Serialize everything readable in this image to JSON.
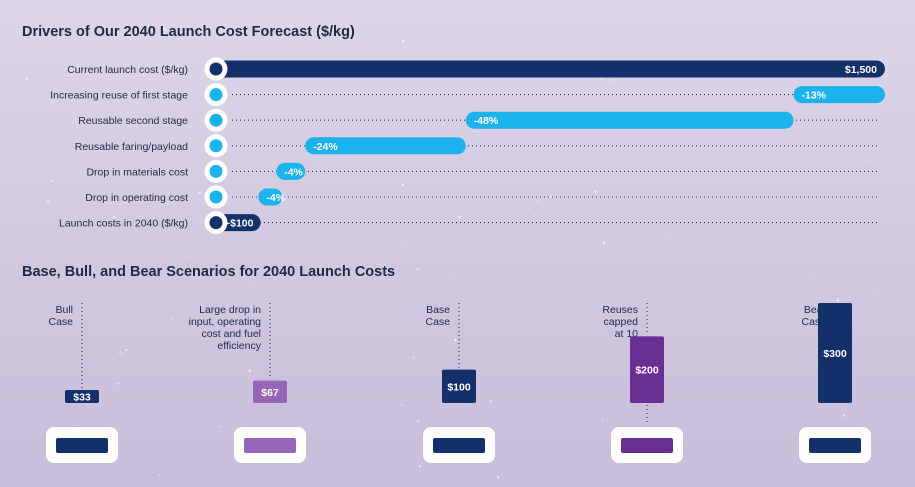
{
  "chart_data": [
    {
      "type": "bar",
      "subtype": "waterfall",
      "title": "Drivers of Our 2040 Launch Cost Forecast ($/kg)",
      "categories": [
        "Current launch cost ($/kg)",
        "Increasing reuse of first stage",
        "Reusable second stage",
        "Reusable faring/payload",
        "Drop in materials cost",
        "Drop in operating cost",
        "Launch costs in 2040 ($/kg)"
      ],
      "values": [
        1500,
        -13,
        -48,
        -24,
        -4,
        -4,
        100
      ],
      "labels": [
        "$1,500",
        "-13%",
        "-48%",
        "-24%",
        "-4%",
        "-4%",
        "~$100"
      ],
      "kinds": [
        "total",
        "change",
        "change",
        "change",
        "change",
        "change",
        "total"
      ],
      "series_colors": {
        "total": "#14306a",
        "change": "#1cb2ec"
      },
      "xlim": [
        0,
        1500
      ],
      "bar_ranges": [
        [
          0,
          1500
        ],
        [
          1295,
          1500
        ],
        [
          560,
          1295
        ],
        [
          200,
          560
        ],
        [
          135,
          200
        ],
        [
          95,
          135
        ],
        [
          0,
          100
        ]
      ]
    },
    {
      "type": "bar",
      "title": "Base, Bull, and Bear Scenarios for 2040 Launch Costs",
      "categories": [
        "Bull Case",
        "Large drop in input, operating cost and fuel efficiency",
        "Base Case",
        "Reuses capped at 10",
        "Bear Case"
      ],
      "category_lines": [
        [
          "Bull",
          "Case"
        ],
        [
          "Large drop in",
          "input, operating",
          "cost and fuel",
          "efficiency"
        ],
        [
          "Base",
          "Case"
        ],
        [
          "Reuses",
          "capped",
          "at 10"
        ],
        [
          "Bear",
          "Case"
        ]
      ],
      "values": [
        33,
        67,
        100,
        200,
        300
      ],
      "labels": [
        "$33",
        "$67",
        "$100",
        "$200",
        "$300"
      ],
      "colors": [
        "#14306a",
        "#9866b8",
        "#14306a",
        "#6a2f92",
        "#14306a"
      ],
      "ylim": [
        0,
        300
      ]
    }
  ]
}
